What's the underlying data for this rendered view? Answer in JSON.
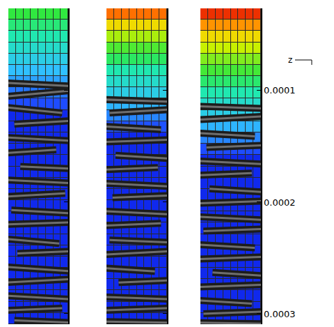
{
  "chart_data": [
    {
      "type": "heatmap",
      "xlim": [
        0,
        1
      ],
      "ylim": [
        0.0003094,
        2.63e-05
      ],
      "yticks": [
        0.0001,
        0.0002,
        0.0003
      ],
      "tick_labels": false,
      "zlim": [
        0,
        1
      ],
      "cells": [
        [
          0.6,
          0.6,
          0.6,
          0.6,
          0.6,
          0.6,
          0.6,
          0.6
        ],
        [
          0.55,
          0.55,
          0.55,
          0.55,
          0.55,
          0.55,
          0.55,
          0.55
        ],
        [
          0.5,
          0.5,
          0.5,
          0.5,
          0.5,
          0.5,
          0.5,
          0.5
        ],
        [
          0.45,
          0.45,
          0.45,
          0.45,
          0.45,
          0.45,
          0.45,
          0.45
        ],
        [
          0.4,
          0.4,
          0.4,
          0.4,
          0.4,
          0.4,
          0.4,
          0.4
        ],
        [
          0.35,
          0.35,
          0.35,
          0.35,
          0.35,
          0.35,
          0.35,
          0.35
        ],
        [
          0.3,
          0.3,
          0.3,
          0.3,
          0.3,
          0.3,
          0.3,
          0.3
        ],
        [
          0.22,
          0.22,
          0.22,
          0.22,
          0.22,
          0.22,
          0.22,
          0.22
        ],
        [
          0.15,
          0.15,
          0.15,
          0.15,
          0.15,
          0.15,
          0.15,
          0.15
        ],
        [
          0.08,
          0.08,
          0.08,
          0.08,
          0.08,
          0.08,
          0.08,
          0.08
        ],
        [
          0.08,
          0.08,
          0.08,
          0.08,
          0.08,
          0.08,
          0.08,
          0.08
        ],
        [
          0.08,
          0.08,
          0.08,
          0.08,
          0.08,
          0.08,
          0.08,
          0.08
        ],
        [
          0.08,
          0.08,
          0.08,
          0.08,
          0.08,
          0.08,
          0.08,
          0.08
        ],
        [
          0.08,
          0.08,
          0.08,
          0.08,
          0.08,
          0.08,
          0.08,
          0.08
        ],
        [
          0.08,
          0.08,
          0.08,
          0.08,
          0.08,
          0.08,
          0.08,
          0.08
        ],
        [
          0.08,
          0.08,
          0.08,
          0.08,
          0.08,
          0.08,
          0.08,
          0.08
        ],
        [
          0.08,
          0.08,
          0.08,
          0.08,
          0.08,
          0.08,
          0.08,
          0.08
        ],
        [
          0.08,
          0.08,
          0.08,
          0.08,
          0.08,
          0.08,
          0.08,
          0.08
        ],
        [
          0.08,
          0.08,
          0.08,
          0.08,
          0.08,
          0.08,
          0.08,
          0.08
        ],
        [
          0.08,
          0.08,
          0.08,
          0.08,
          0.08,
          0.08,
          0.08,
          0.08
        ],
        [
          0.08,
          0.08,
          0.08,
          0.08,
          0.08,
          0.08,
          0.08,
          0.08
        ],
        [
          0.08,
          0.08,
          0.08,
          0.08,
          0.08,
          0.08,
          0.08,
          0.08
        ],
        [
          0.08,
          0.08,
          0.08,
          0.08,
          0.08,
          0.08,
          0.08,
          0.08
        ],
        [
          0.08,
          0.08,
          0.08,
          0.08,
          0.08,
          0.08,
          0.08,
          0.08
        ],
        [
          0.08,
          0.08,
          0.08,
          0.08,
          0.08,
          0.08,
          0.08,
          0.08
        ],
        [
          0.08,
          0.08,
          0.08,
          0.08,
          0.08,
          0.08,
          0.08,
          0.08
        ],
        [
          0.08,
          0.08,
          0.08,
          0.08,
          0.08,
          0.08,
          0.08,
          0.08
        ],
        [
          0.08,
          0.08,
          0.08,
          0.08,
          0.08,
          0.08,
          0.08,
          0.08
        ]
      ],
      "fibers": [
        [
          -0.05,
          9.3e-05,
          1.05,
          9.6e-05
        ],
        [
          0.0,
          0.000105,
          1.05,
          0.0001
        ],
        [
          -0.05,
          0.000115,
          0.9,
          0.00012
        ],
        [
          0.1,
          0.00013,
          1.05,
          0.000127
        ],
        [
          -0.05,
          0.000142,
          1.05,
          0.000145
        ],
        [
          -0.05,
          0.000156,
          0.8,
          0.000153
        ],
        [
          0.2,
          0.000168,
          1.05,
          0.00017
        ],
        [
          -0.05,
          0.00018,
          1.05,
          0.000183
        ],
        [
          -0.05,
          0.000195,
          0.95,
          0.000192
        ],
        [
          0.05,
          0.000207,
          1.05,
          0.00021
        ],
        [
          -0.05,
          0.00022,
          1.05,
          0.000218
        ],
        [
          -0.05,
          0.000233,
          0.85,
          0.000237
        ],
        [
          0.15,
          0.000246,
          1.05,
          0.000244
        ],
        [
          -0.05,
          0.000258,
          1.05,
          0.000262
        ],
        [
          -0.05,
          0.000272,
          1.05,
          0.000269
        ],
        [
          0.0,
          0.000284,
          1.05,
          0.000287
        ],
        [
          -0.05,
          0.000297,
          0.9,
          0.000295
        ],
        [
          0.1,
          0.000306,
          1.05,
          0.000308
        ]
      ]
    },
    {
      "type": "heatmap",
      "xlim": [
        0,
        1
      ],
      "ylim": [
        0.0003094,
        2.63e-05
      ],
      "yticks": [
        0.0001,
        0.0002,
        0.0003
      ],
      "tick_labels": false,
      "zlim": [
        0,
        1
      ],
      "cells": [
        [
          0.93,
          0.93,
          0.93,
          0.93,
          0.93,
          0.93,
          0.93,
          0.93
        ],
        [
          0.82,
          0.82,
          0.82,
          0.82,
          0.82,
          0.82,
          0.82,
          0.82
        ],
        [
          0.72,
          0.72,
          0.72,
          0.72,
          0.72,
          0.72,
          0.72,
          0.72
        ],
        [
          0.63,
          0.63,
          0.63,
          0.63,
          0.63,
          0.63,
          0.63,
          0.63
        ],
        [
          0.57,
          0.57,
          0.57,
          0.57,
          0.57,
          0.57,
          0.57,
          0.57
        ],
        [
          0.5,
          0.5,
          0.5,
          0.5,
          0.5,
          0.5,
          0.5,
          0.5
        ],
        [
          0.45,
          0.45,
          0.45,
          0.45,
          0.45,
          0.45,
          0.45,
          0.45
        ],
        [
          0.4,
          0.4,
          0.4,
          0.4,
          0.4,
          0.4,
          0.4,
          0.4
        ],
        [
          0.33,
          0.33,
          0.33,
          0.33,
          0.33,
          0.33,
          0.33,
          0.33
        ],
        [
          0.25,
          0.25,
          0.25,
          0.25,
          0.25,
          0.25,
          0.25,
          0.25
        ],
        [
          0.16,
          0.16,
          0.16,
          0.16,
          0.16,
          0.16,
          0.16,
          0.16
        ],
        [
          0.08,
          0.08,
          0.08,
          0.08,
          0.08,
          0.08,
          0.08,
          0.08
        ],
        [
          0.08,
          0.08,
          0.08,
          0.08,
          0.08,
          0.08,
          0.08,
          0.08
        ],
        [
          0.08,
          0.08,
          0.08,
          0.08,
          0.08,
          0.08,
          0.08,
          0.08
        ],
        [
          0.08,
          0.08,
          0.08,
          0.08,
          0.08,
          0.08,
          0.08,
          0.08
        ],
        [
          0.08,
          0.08,
          0.08,
          0.08,
          0.08,
          0.08,
          0.08,
          0.08
        ],
        [
          0.08,
          0.08,
          0.08,
          0.08,
          0.08,
          0.08,
          0.08,
          0.08
        ],
        [
          0.08,
          0.08,
          0.08,
          0.08,
          0.08,
          0.08,
          0.08,
          0.08
        ],
        [
          0.08,
          0.08,
          0.08,
          0.08,
          0.08,
          0.08,
          0.08,
          0.08
        ],
        [
          0.08,
          0.08,
          0.08,
          0.08,
          0.08,
          0.08,
          0.08,
          0.08
        ],
        [
          0.08,
          0.08,
          0.08,
          0.08,
          0.08,
          0.08,
          0.08,
          0.08
        ],
        [
          0.08,
          0.08,
          0.08,
          0.08,
          0.08,
          0.08,
          0.08,
          0.08
        ],
        [
          0.08,
          0.08,
          0.08,
          0.08,
          0.08,
          0.08,
          0.08,
          0.08
        ],
        [
          0.08,
          0.08,
          0.08,
          0.08,
          0.08,
          0.08,
          0.08,
          0.08
        ],
        [
          0.08,
          0.08,
          0.08,
          0.08,
          0.08,
          0.08,
          0.08,
          0.08
        ],
        [
          0.08,
          0.08,
          0.08,
          0.08,
          0.08,
          0.08,
          0.08,
          0.08
        ],
        [
          0.08,
          0.08,
          0.08,
          0.08,
          0.08,
          0.08,
          0.08,
          0.08
        ],
        [
          0.08,
          0.08,
          0.08,
          0.08,
          0.08,
          0.08,
          0.08,
          0.08
        ]
      ],
      "fibers": [
        [
          -0.05,
          0.000108,
          1.05,
          0.00011
        ],
        [
          0.05,
          0.00012,
          1.05,
          0.000117
        ],
        [
          -0.05,
          0.000132,
          0.9,
          0.000135
        ],
        [
          -0.05,
          0.000146,
          1.05,
          0.000144
        ],
        [
          0.15,
          0.000158,
          1.05,
          0.000161
        ],
        [
          -0.05,
          0.000171,
          0.85,
          0.000169
        ],
        [
          -0.05,
          0.000183,
          1.05,
          0.000186
        ],
        [
          0.1,
          0.000196,
          1.05,
          0.000194
        ],
        [
          -0.05,
          0.000208,
          1.05,
          0.000211
        ],
        [
          -0.05,
          0.000221,
          0.9,
          0.000219
        ],
        [
          0.05,
          0.000234,
          1.05,
          0.000236
        ],
        [
          -0.05,
          0.000247,
          1.05,
          0.000244
        ],
        [
          -0.05,
          0.000259,
          0.8,
          0.000262
        ],
        [
          0.2,
          0.000272,
          1.05,
          0.00027
        ],
        [
          -0.05,
          0.000285,
          1.05,
          0.000287
        ],
        [
          -0.05,
          0.000297,
          1.05,
          0.000295
        ],
        [
          0.0,
          0.000307,
          1.05,
          0.000308
        ]
      ]
    },
    {
      "type": "heatmap",
      "xlim": [
        0,
        1
      ],
      "ylim": [
        0.0003094,
        2.63e-05
      ],
      "yticks": [
        0.0001,
        0.0002,
        0.0003
      ],
      "tick_labels": "y",
      "zlim": [
        0,
        1
      ],
      "annotations": [
        "z"
      ],
      "cells": [
        [
          0.97,
          0.97,
          0.97,
          0.97,
          0.97,
          0.97,
          0.97,
          0.97
        ],
        [
          0.9,
          0.9,
          0.9,
          0.9,
          0.9,
          0.9,
          0.9,
          0.9
        ],
        [
          0.82,
          0.82,
          0.82,
          0.82,
          0.82,
          0.82,
          0.82,
          0.82
        ],
        [
          0.75,
          0.75,
          0.75,
          0.75,
          0.75,
          0.75,
          0.75,
          0.75
        ],
        [
          0.68,
          0.68,
          0.68,
          0.68,
          0.68,
          0.68,
          0.68,
          0.68
        ],
        [
          0.62,
          0.62,
          0.62,
          0.62,
          0.62,
          0.62,
          0.62,
          0.62
        ],
        [
          0.56,
          0.56,
          0.56,
          0.56,
          0.56,
          0.56,
          0.56,
          0.56
        ],
        [
          0.5,
          0.5,
          0.5,
          0.5,
          0.5,
          0.5,
          0.5,
          0.5
        ],
        [
          0.45,
          0.45,
          0.45,
          0.45,
          0.45,
          0.45,
          0.45,
          0.45
        ],
        [
          0.4,
          0.4,
          0.4,
          0.4,
          0.4,
          0.4,
          0.4,
          0.4
        ],
        [
          0.33,
          0.33,
          0.33,
          0.33,
          0.33,
          0.33,
          0.33,
          0.33
        ],
        [
          0.25,
          0.25,
          0.25,
          0.25,
          0.25,
          0.25,
          0.25,
          0.25
        ],
        [
          0.15,
          0.15,
          0.15,
          0.15,
          0.15,
          0.15,
          0.15,
          0.15
        ],
        [
          0.08,
          0.08,
          0.08,
          0.08,
          0.08,
          0.08,
          0.08,
          0.08
        ],
        [
          0.08,
          0.08,
          0.08,
          0.08,
          0.08,
          0.08,
          0.08,
          0.08
        ],
        [
          0.08,
          0.08,
          0.08,
          0.08,
          0.08,
          0.08,
          0.08,
          0.08
        ],
        [
          0.08,
          0.08,
          0.08,
          0.08,
          0.08,
          0.08,
          0.08,
          0.08
        ],
        [
          0.08,
          0.08,
          0.08,
          0.08,
          0.08,
          0.08,
          0.08,
          0.08
        ],
        [
          0.08,
          0.08,
          0.08,
          0.08,
          0.08,
          0.08,
          0.08,
          0.08
        ],
        [
          0.08,
          0.08,
          0.08,
          0.08,
          0.08,
          0.08,
          0.08,
          0.08
        ],
        [
          0.08,
          0.08,
          0.08,
          0.08,
          0.08,
          0.08,
          0.08,
          0.08
        ],
        [
          0.08,
          0.08,
          0.08,
          0.08,
          0.08,
          0.08,
          0.08,
          0.08
        ],
        [
          0.08,
          0.08,
          0.08,
          0.08,
          0.08,
          0.08,
          0.08,
          0.08
        ],
        [
          0.08,
          0.08,
          0.08,
          0.08,
          0.08,
          0.08,
          0.08,
          0.08
        ],
        [
          0.08,
          0.08,
          0.08,
          0.08,
          0.08,
          0.08,
          0.08,
          0.08
        ],
        [
          0.08,
          0.08,
          0.08,
          0.08,
          0.08,
          0.08,
          0.08,
          0.08
        ],
        [
          0.08,
          0.08,
          0.08,
          0.08,
          0.08,
          0.08,
          0.08,
          0.08
        ],
        [
          0.08,
          0.08,
          0.08,
          0.08,
          0.08,
          0.08,
          0.08,
          0.08
        ]
      ],
      "fibers": [
        [
          -0.05,
          0.000114,
          1.05,
          0.000116
        ],
        [
          0.0,
          0.000126,
          1.05,
          0.000123
        ],
        [
          -0.05,
          0.000138,
          0.9,
          0.000141
        ],
        [
          0.1,
          0.000151,
          1.05,
          0.000149
        ],
        [
          -0.05,
          0.000163,
          1.05,
          0.000166
        ],
        [
          -0.05,
          0.000176,
          0.85,
          0.000174
        ],
        [
          0.15,
          0.000188,
          1.05,
          0.000191
        ],
        [
          -0.05,
          0.000201,
          1.05,
          0.000199
        ],
        [
          -0.05,
          0.000213,
          1.05,
          0.000216
        ],
        [
          0.05,
          0.000226,
          1.05,
          0.000224
        ],
        [
          -0.05,
          0.000238,
          0.9,
          0.000241
        ],
        [
          -0.05,
          0.000251,
          1.05,
          0.000249
        ],
        [
          0.2,
          0.000263,
          1.05,
          0.000266
        ],
        [
          -0.05,
          0.000276,
          1.05,
          0.000274
        ],
        [
          -0.05,
          0.000288,
          0.85,
          0.000291
        ],
        [
          0.05,
          0.0003,
          1.05,
          0.000298
        ],
        [
          -0.05,
          0.000308,
          1.05,
          0.000309
        ]
      ]
    }
  ]
}
